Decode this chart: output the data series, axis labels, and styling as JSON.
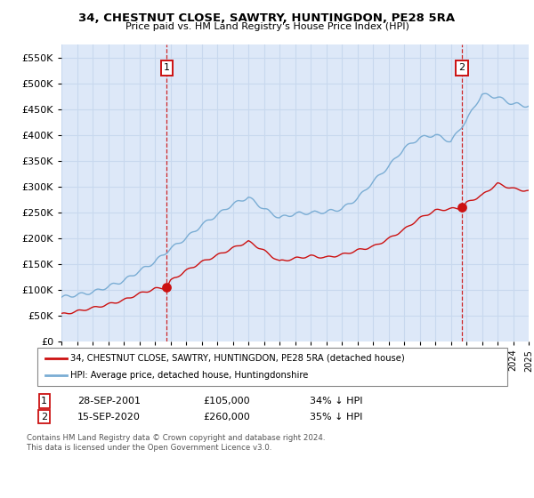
{
  "title": "34, CHESTNUT CLOSE, SAWTRY, HUNTINGDON, PE28 5RA",
  "subtitle": "Price paid vs. HM Land Registry's House Price Index (HPI)",
  "background_color": "#ffffff",
  "plot_bg_color": "#dde8f8",
  "grid_color": "#c8d8ee",
  "red_line_color": "#cc1111",
  "blue_line_color": "#7aadd4",
  "transaction1": {
    "date": "28-SEP-2001",
    "price": 105000,
    "year": 2001.75,
    "pct": "34% ↓ HPI"
  },
  "transaction2": {
    "date": "15-SEP-2020",
    "price": 260000,
    "year": 2020.71,
    "pct": "35% ↓ HPI"
  },
  "legend_line1": "34, CHESTNUT CLOSE, SAWTRY, HUNTINGDON, PE28 5RA (detached house)",
  "legend_line2": "HPI: Average price, detached house, Huntingdonshire",
  "footer": "Contains HM Land Registry data © Crown copyright and database right 2024.\nThis data is licensed under the Open Government Licence v3.0.",
  "ylim": [
    0,
    575000
  ],
  "yticks": [
    0,
    50000,
    100000,
    150000,
    200000,
    250000,
    300000,
    350000,
    400000,
    450000,
    500000,
    550000
  ],
  "x_start_year": 1995,
  "x_end_year": 2025
}
